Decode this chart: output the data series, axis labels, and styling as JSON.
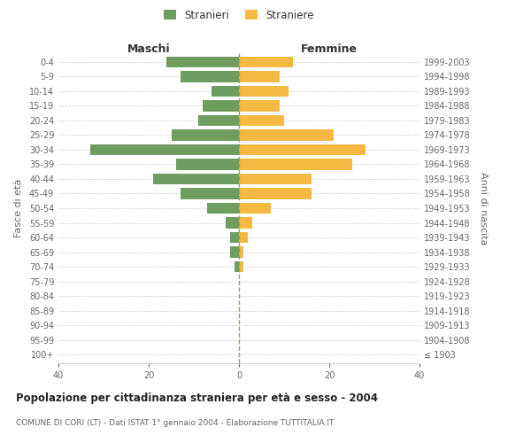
{
  "age_groups": [
    "100+",
    "95-99",
    "90-94",
    "85-89",
    "80-84",
    "75-79",
    "70-74",
    "65-69",
    "60-64",
    "55-59",
    "50-54",
    "45-49",
    "40-44",
    "35-39",
    "30-34",
    "25-29",
    "20-24",
    "15-19",
    "10-14",
    "5-9",
    "0-4"
  ],
  "birth_years": [
    "≤ 1903",
    "1904-1908",
    "1909-1913",
    "1914-1918",
    "1919-1923",
    "1924-1928",
    "1929-1933",
    "1934-1938",
    "1939-1943",
    "1944-1948",
    "1949-1953",
    "1954-1958",
    "1959-1963",
    "1964-1968",
    "1969-1973",
    "1974-1978",
    "1979-1983",
    "1984-1988",
    "1989-1993",
    "1994-1998",
    "1999-2003"
  ],
  "males": [
    0,
    0,
    0,
    0,
    0,
    0,
    1,
    2,
    2,
    3,
    7,
    13,
    19,
    14,
    33,
    15,
    9,
    8,
    6,
    13,
    16
  ],
  "females": [
    0,
    0,
    0,
    0,
    0,
    0,
    1,
    1,
    2,
    3,
    7,
    16,
    16,
    25,
    28,
    21,
    10,
    9,
    11,
    9,
    12
  ],
  "male_color": "#6e9e5f",
  "female_color": "#f5b942",
  "title_main": "Popolazione per cittadinanza straniera per età e sesso - 2004",
  "subtitle": "COMUNE DI CORI (LT) - Dati ISTAT 1° gennaio 2004 - Elaborazione TUTTITALIA.IT",
  "xlabel_left": "Maschi",
  "xlabel_right": "Femmine",
  "ylabel_left": "Fasce di età",
  "ylabel_right": "Anni di nascita",
  "legend_male": "Stranieri",
  "legend_female": "Straniere",
  "xlim": 40,
  "background_color": "#ffffff",
  "grid_color": "#cccccc"
}
